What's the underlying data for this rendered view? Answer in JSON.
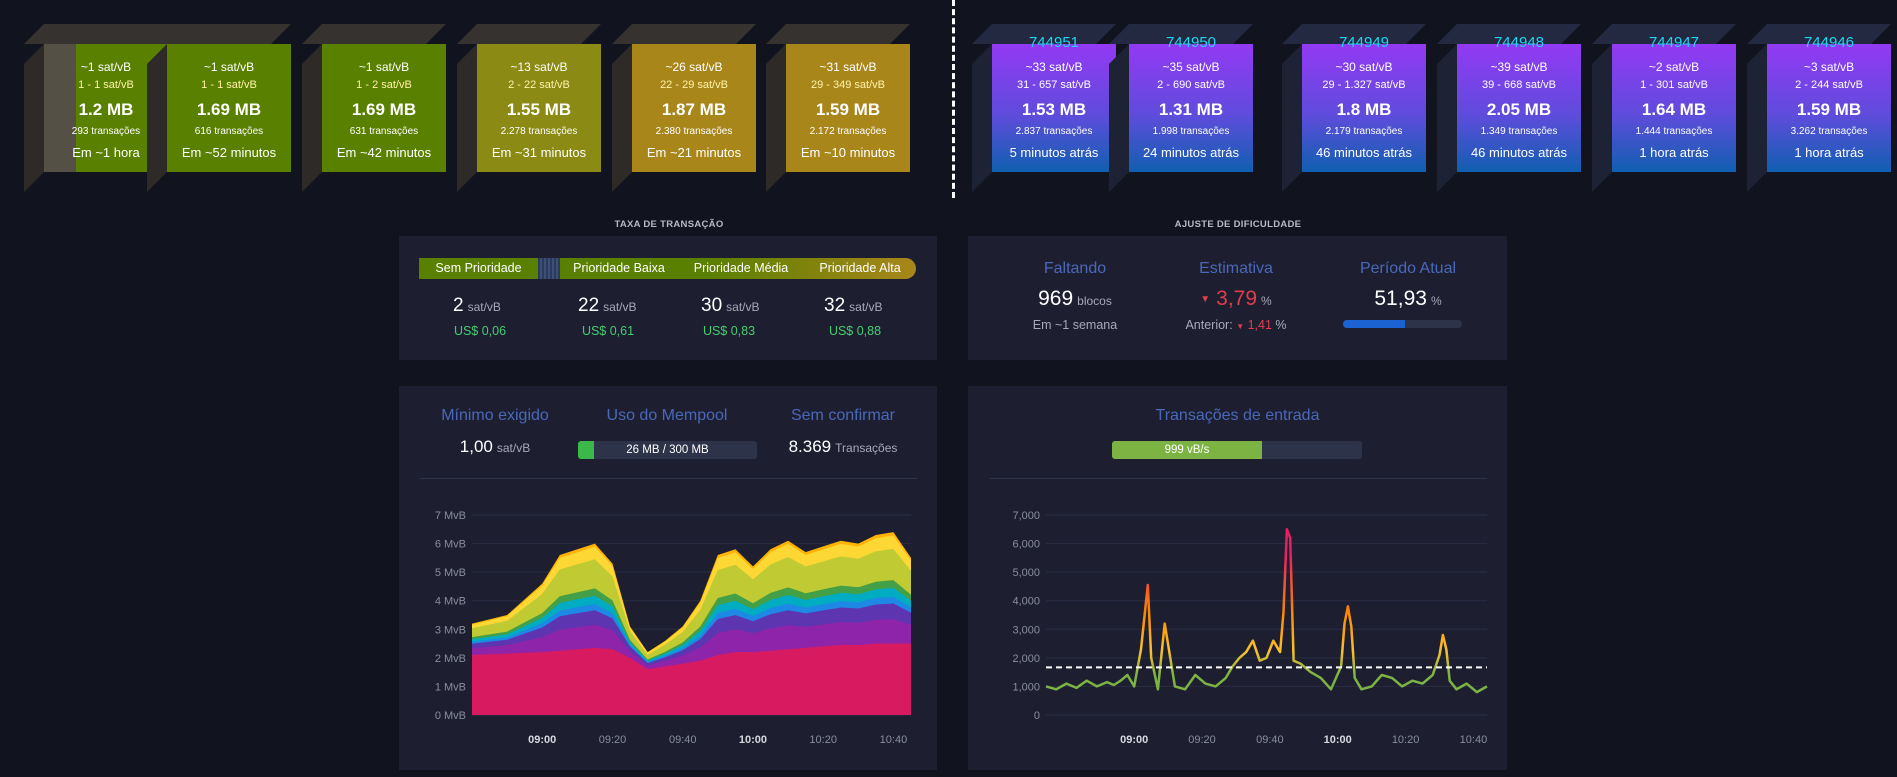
{
  "projected_blocks": [
    {
      "fee": "~1 sat/vB",
      "range": "1 - 1 sat/vB",
      "size": "1.2 MB",
      "txs": "293 transações",
      "time": "Em ~1 hora",
      "color": "#5a8000",
      "partial": 0.74
    },
    {
      "fee": "~1 sat/vB",
      "range": "1 - 1 sat/vB",
      "size": "1.69 MB",
      "txs": "616 transações",
      "time": "Em ~52 minutos",
      "color": "#5a8000"
    },
    {
      "fee": "~1 sat/vB",
      "range": "1 - 2 sat/vB",
      "size": "1.69 MB",
      "txs": "631 transações",
      "time": "Em ~42 minutos",
      "color": "#5a8000"
    },
    {
      "fee": "~13 sat/vB",
      "range": "2 - 22 sat/vB",
      "size": "1.55 MB",
      "txs": "2.278 transações",
      "time": "Em ~31 minutos",
      "color": "#8a8a14"
    },
    {
      "fee": "~26 sat/vB",
      "range": "22 - 29 sat/vB",
      "size": "1.87 MB",
      "txs": "2.380 transações",
      "time": "Em ~21 minutos",
      "color": "#a8861a"
    },
    {
      "fee": "~31 sat/vB",
      "range": "29 - 349 sat/vB",
      "size": "1.59 MB",
      "txs": "2.172 transações",
      "time": "Em ~10 minutos",
      "color": "#a8861a"
    }
  ],
  "mined_blocks": [
    {
      "height": "744951",
      "fee": "~33 sat/vB",
      "range": "31 - 657 sat/vB",
      "size": "1.53 MB",
      "txs": "2.837 transações",
      "time": "5 minutos atrás"
    },
    {
      "height": "744950",
      "fee": "~35 sat/vB",
      "range": "2 - 690 sat/vB",
      "size": "1.31 MB",
      "txs": "1.998 transações",
      "time": "24 minutos atrás"
    },
    {
      "height": "744949",
      "fee": "~30 sat/vB",
      "range": "29 - 1.327 sat/vB",
      "size": "1.8 MB",
      "txs": "2.179 transações",
      "time": "46 minutos atrás"
    },
    {
      "height": "744948",
      "fee": "~39 sat/vB",
      "range": "39 - 668 sat/vB",
      "size": "2.05 MB",
      "txs": "1.349 transações",
      "time": "46 minutos atrás"
    },
    {
      "height": "744947",
      "fee": "~2 sat/vB",
      "range": "1 - 301 sat/vB",
      "size": "1.64 MB",
      "txs": "1.444 transações",
      "time": "1 hora atrás"
    },
    {
      "height": "744946",
      "fee": "~3 sat/vB",
      "range": "2 - 244 sat/vB",
      "size": "1.59 MB",
      "txs": "3.262 transações",
      "time": "1 hora atrás"
    }
  ],
  "fees": {
    "title": "TAXA DE TRANSAÇÃO",
    "tabs": [
      "Sem Prioridade",
      "Prioridade Baixa",
      "Prioridade Média",
      "Prioridade Alta"
    ],
    "values": [
      {
        "value": "2",
        "unit": "sat/vB",
        "fiat": "US$ 0,06"
      },
      {
        "value": "22",
        "unit": "sat/vB",
        "fiat": "US$ 0,61"
      },
      {
        "value": "30",
        "unit": "sat/vB",
        "fiat": "US$ 0,83"
      },
      {
        "value": "32",
        "unit": "sat/vB",
        "fiat": "US$ 0,88"
      }
    ]
  },
  "difficulty": {
    "title": "AJUSTE DE DIFICULDADE",
    "remaining_label": "Faltando",
    "remaining_value": "969",
    "remaining_unit": "blocos",
    "remaining_eta": "Em ~1 semana",
    "estimate_label": "Estimativa",
    "estimate_value": "3,79",
    "estimate_unit": "%",
    "previous_label": "Anterior:",
    "previous_value": "1,41",
    "previous_unit": "%",
    "period_label": "Período Atual",
    "period_value": "51,93",
    "period_unit": "%",
    "period_progress": 0.5193
  },
  "mempool": {
    "min_label": "Mínimo exigido",
    "min_value": "1,00",
    "min_unit": "sat/vB",
    "usage_label": "Uso do Mempool",
    "usage_value": "26 MB / 300 MB",
    "usage_fraction": 0.0867,
    "unconfirmed_label": "Sem confirmar",
    "unconfirmed_value": "8.369",
    "unconfirmed_unit": "Transações"
  },
  "incoming": {
    "label": "Transações de entrada",
    "rate": "999 vB/s",
    "rate_fraction": 0.6
  },
  "chart_data": [
    {
      "type": "area",
      "y_ticks": [
        "0 MvB",
        "1 MvB",
        "2 MvB",
        "3 MvB",
        "4 MvB",
        "5 MvB",
        "6 MvB",
        "7 MvB"
      ],
      "ylim": [
        0,
        7
      ],
      "x_ticks": [
        "09:00",
        "09:20",
        "09:40",
        "10:00",
        "10:20",
        "10:40"
      ],
      "x_ticks_bold": [
        "09:00",
        "10:00"
      ],
      "x": [
        "08:40",
        "08:50",
        "09:00",
        "09:05",
        "09:10",
        "09:15",
        "09:20",
        "09:25",
        "09:30",
        "09:35",
        "09:40",
        "09:45",
        "09:50",
        "09:55",
        "10:00",
        "10:05",
        "10:10",
        "10:15",
        "10:20",
        "10:25",
        "10:30",
        "10:35",
        "10:40",
        "10:45"
      ],
      "total": [
        3.2,
        3.5,
        4.6,
        5.6,
        5.8,
        6.0,
        5.3,
        3.1,
        2.2,
        2.6,
        3.1,
        4.0,
        5.6,
        5.8,
        5.2,
        5.8,
        6.1,
        5.7,
        5.9,
        6.1,
        6.0,
        6.3,
        6.4,
        5.5
      ],
      "base": [
        2.1,
        2.15,
        2.2,
        2.25,
        2.3,
        2.35,
        2.3,
        2.0,
        1.6,
        1.7,
        1.8,
        1.9,
        2.1,
        2.2,
        2.2,
        2.25,
        2.3,
        2.35,
        2.4,
        2.45,
        2.45,
        2.5,
        2.5,
        2.5
      ],
      "series_colors": [
        "#d81b60",
        "#8e24aa",
        "#5e35b1",
        "#1e88e5",
        "#00acc1",
        "#43a047",
        "#c0ca33",
        "#fdd835",
        "#ffb300"
      ]
    },
    {
      "type": "line",
      "y_ticks": [
        "0",
        "1,000",
        "2,000",
        "3,000",
        "4,000",
        "5,000",
        "6,000",
        "7,000"
      ],
      "ylim": [
        0,
        7000
      ],
      "x_ticks": [
        "09:00",
        "09:20",
        "09:40",
        "10:00",
        "10:20",
        "10:40"
      ],
      "x_ticks_bold": [
        "09:00",
        "10:00"
      ],
      "reference": 1667,
      "x": [
        "08:34",
        "08:37",
        "08:40",
        "08:43",
        "08:46",
        "08:49",
        "08:52",
        "08:54",
        "08:56",
        "08:58",
        "09:00",
        "09:02",
        "09:04",
        "09:05",
        "09:07",
        "09:09",
        "09:12",
        "09:15",
        "09:18",
        "09:21",
        "09:24",
        "09:27",
        "09:29",
        "09:31",
        "09:33",
        "09:35",
        "09:37",
        "09:39",
        "09:41",
        "09:43",
        "09:44",
        "09:45",
        "09:46",
        "09:47",
        "09:49",
        "09:52",
        "09:55",
        "09:58",
        "10:01",
        "10:02",
        "10:03",
        "10:04",
        "10:05",
        "10:07",
        "10:10",
        "10:13",
        "10:16",
        "10:19",
        "10:22",
        "10:25",
        "10:28",
        "10:30",
        "10:31",
        "10:32",
        "10:33",
        "10:35",
        "10:38",
        "10:41",
        "10:44"
      ],
      "values": [
        1000,
        900,
        1100,
        950,
        1200,
        1000,
        1150,
        1050,
        1200,
        1400,
        1000,
        2300,
        4550,
        2000,
        900,
        3200,
        1000,
        900,
        1400,
        1100,
        1000,
        1300,
        1700,
        2000,
        2200,
        2600,
        1900,
        2000,
        2600,
        2200,
        3600,
        6500,
        6200,
        1900,
        1800,
        1500,
        1300,
        900,
        1700,
        3200,
        3800,
        3100,
        1300,
        900,
        1000,
        1400,
        1300,
        1000,
        1200,
        1100,
        1400,
        2100,
        2800,
        2300,
        1200,
        900,
        1100,
        800,
        1000
      ]
    }
  ]
}
